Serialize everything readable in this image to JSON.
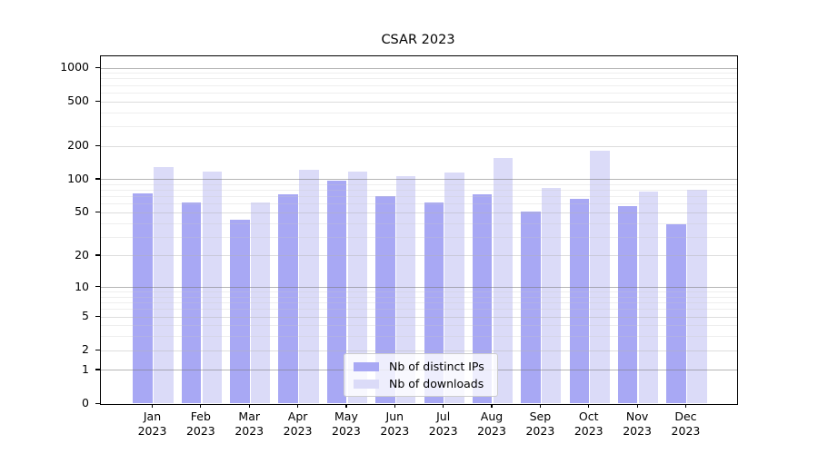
{
  "chart_data": {
    "type": "bar",
    "title": "CSAR 2023",
    "year": "2023",
    "categories": [
      "Jan",
      "Feb",
      "Mar",
      "Apr",
      "May",
      "Jun",
      "Jul",
      "Aug",
      "Sep",
      "Oct",
      "Nov",
      "Dec"
    ],
    "series": [
      {
        "name": "Nb of distinct IPs",
        "color": "#a8a8f4",
        "values": [
          75,
          61,
          43,
          73,
          97,
          70,
          62,
          73,
          51,
          66,
          57,
          39
        ]
      },
      {
        "name": "Nb of downloads",
        "color": "#dbdbf8",
        "values": [
          128,
          117,
          62,
          122,
          118,
          106,
          114,
          154,
          84,
          182,
          77,
          80
        ]
      }
    ],
    "yscale": "log1p",
    "ylim": [
      0,
      1000
    ],
    "yticks": [
      0,
      1,
      2,
      5,
      10,
      20,
      50,
      100,
      200,
      500,
      1000
    ],
    "major_decades": [
      1,
      10,
      100,
      1000
    ],
    "minor_ticks": [
      3,
      4,
      6,
      7,
      8,
      9,
      30,
      40,
      60,
      70,
      80,
      90,
      300,
      400,
      600,
      700,
      800,
      900
    ],
    "grid": true,
    "legend_position": "lower center"
  }
}
